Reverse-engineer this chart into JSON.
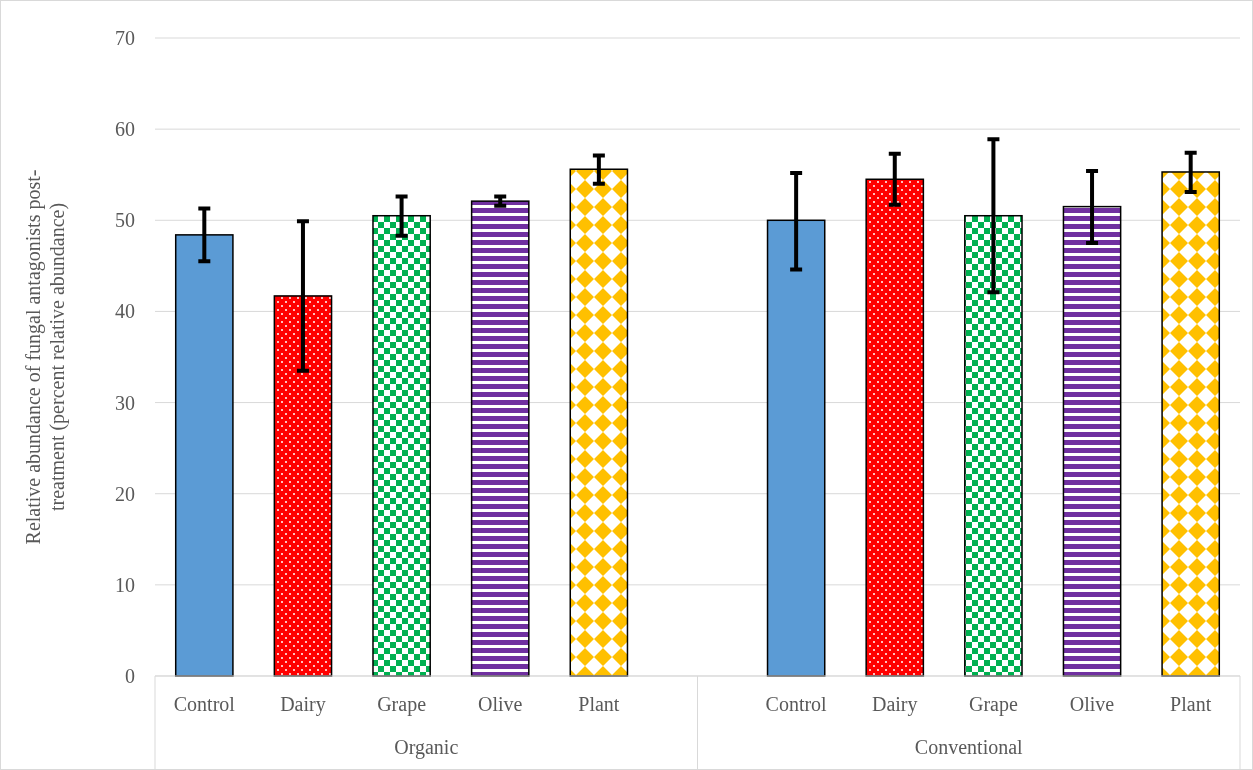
{
  "chart_data": {
    "type": "bar",
    "ylabel": "Relative abundance of fungal antagonists post-treatment (percent relative abundance)",
    "categories": [
      "Control",
      "Dairy",
      "Grape",
      "Olive",
      "Plant",
      null,
      "Control",
      "Dairy",
      "Grape",
      "Olive",
      "Plant"
    ],
    "values": [
      48.4,
      41.7,
      50.5,
      52.1,
      55.6,
      null,
      50.0,
      54.5,
      50.5,
      51.5,
      55.3
    ],
    "colors": [
      "#5b9bd5",
      "#ff0000",
      "#00b050",
      "#7030a0",
      "#ffc000",
      "#ffffff",
      "#5b9bd5",
      "#ff0000",
      "#00b050",
      "#7030a0",
      "#ffc000"
    ],
    "errors": [
      [
        45.5,
        51.3
      ],
      [
        33.5,
        49.9
      ],
      [
        48.3,
        52.6
      ],
      [
        51.6,
        52.6
      ],
      [
        54.0,
        57.1
      ],
      null,
      [
        44.6,
        55.2
      ],
      [
        51.7,
        57.3
      ],
      [
        42.1,
        58.9
      ],
      [
        47.5,
        55.4
      ],
      [
        53.1,
        57.4
      ]
    ],
    "annotations": [
      "Organic",
      "Conventional"
    ],
    "ylim": [
      0,
      70
    ],
    "yticks": [
      0,
      10,
      20,
      30,
      40,
      50,
      60,
      70
    ],
    "grid": "y"
  }
}
